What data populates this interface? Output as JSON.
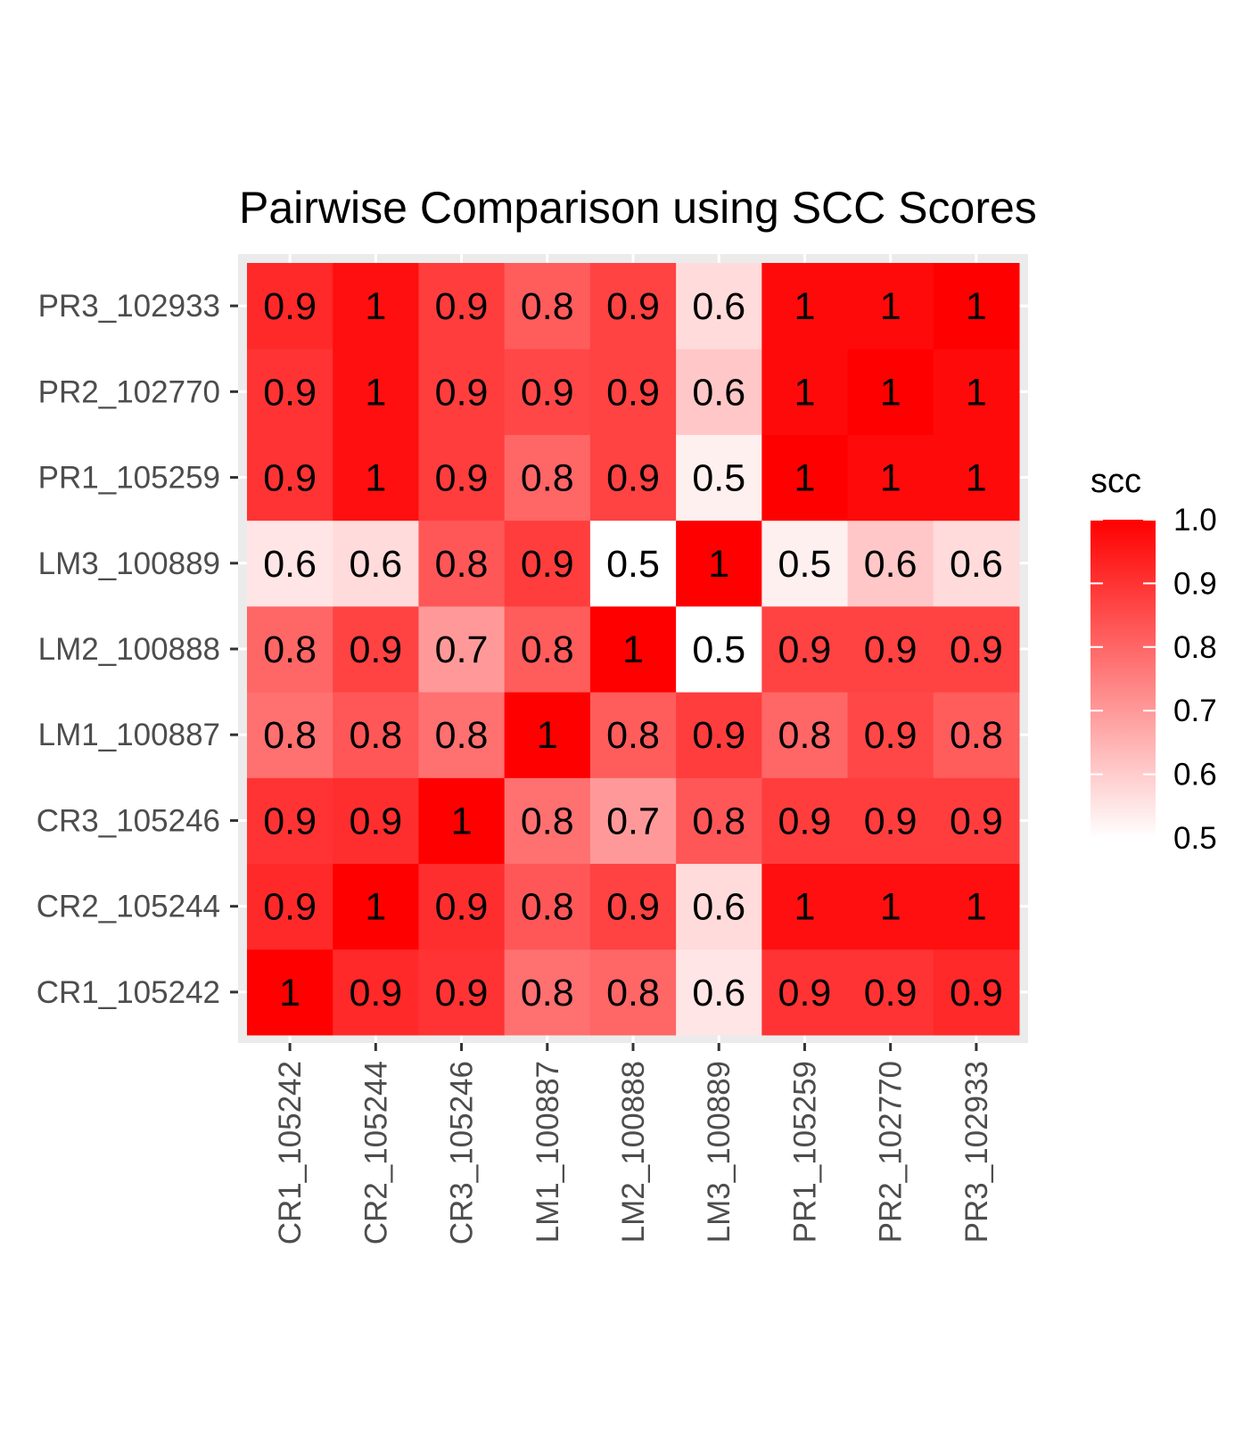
{
  "chart_data": {
    "type": "heatmap",
    "title": "Pairwise Comparison using SCC Scores",
    "x_categories": [
      "CR1_105242",
      "CR2_105244",
      "CR3_105246",
      "LM1_100887",
      "LM2_100888",
      "LM3_100889",
      "PR1_105259",
      "PR2_102770",
      "PR3_102933"
    ],
    "y_categories": [
      "CR1_105242",
      "CR2_105244",
      "CR3_105246",
      "LM1_100887",
      "LM2_100888",
      "LM3_100889",
      "PR1_105259",
      "PR2_102770",
      "PR3_102933"
    ],
    "values": [
      [
        1.0,
        0.92,
        0.9,
        0.78,
        0.8,
        0.55,
        0.9,
        0.9,
        0.92
      ],
      [
        0.92,
        1.0,
        0.91,
        0.83,
        0.87,
        0.57,
        0.97,
        0.97,
        0.97
      ],
      [
        0.9,
        0.91,
        1.0,
        0.78,
        0.7,
        0.83,
        0.88,
        0.88,
        0.88
      ],
      [
        0.78,
        0.83,
        0.78,
        1.0,
        0.82,
        0.88,
        0.8,
        0.86,
        0.82
      ],
      [
        0.8,
        0.87,
        0.7,
        0.82,
        1.0,
        0.5,
        0.87,
        0.87,
        0.87
      ],
      [
        0.55,
        0.57,
        0.83,
        0.88,
        0.5,
        1.0,
        0.53,
        0.61,
        0.57
      ],
      [
        0.9,
        0.97,
        0.88,
        0.8,
        0.87,
        0.53,
        1.0,
        0.98,
        0.98
      ],
      [
        0.9,
        0.97,
        0.88,
        0.86,
        0.87,
        0.61,
        0.98,
        1.0,
        0.98
      ],
      [
        0.92,
        0.97,
        0.88,
        0.82,
        0.87,
        0.57,
        0.98,
        0.98,
        1.0
      ]
    ],
    "cell_labels": [
      [
        "1",
        "0.9",
        "0.9",
        "0.8",
        "0.8",
        "0.6",
        "0.9",
        "0.9",
        "0.9"
      ],
      [
        "0.9",
        "1",
        "0.9",
        "0.8",
        "0.9",
        "0.6",
        "1",
        "1",
        "1"
      ],
      [
        "0.9",
        "0.9",
        "1",
        "0.8",
        "0.7",
        "0.8",
        "0.9",
        "0.9",
        "0.9"
      ],
      [
        "0.8",
        "0.8",
        "0.8",
        "1",
        "0.8",
        "0.9",
        "0.8",
        "0.9",
        "0.8"
      ],
      [
        "0.8",
        "0.9",
        "0.7",
        "0.8",
        "1",
        "0.5",
        "0.9",
        "0.9",
        "0.9"
      ],
      [
        "0.6",
        "0.6",
        "0.8",
        "0.9",
        "0.5",
        "1",
        "0.5",
        "0.6",
        "0.6"
      ],
      [
        "0.9",
        "1",
        "0.9",
        "0.8",
        "0.9",
        "0.5",
        "1",
        "1",
        "1"
      ],
      [
        "0.9",
        "1",
        "0.9",
        "0.9",
        "0.9",
        "0.6",
        "1",
        "1",
        "1"
      ],
      [
        "0.9",
        "1",
        "0.9",
        "0.8",
        "0.9",
        "0.6",
        "1",
        "1",
        "1"
      ]
    ],
    "value_range": [
      0.5,
      1.0
    ],
    "color_low": "#ffffff",
    "color_high": "#ff0000",
    "panel_background": "#ebebeb",
    "grid": true,
    "legend": {
      "title": "scc",
      "ticks": [
        "1.0",
        "0.9",
        "0.8",
        "0.7",
        "0.6",
        "0.5"
      ],
      "tick_values": [
        1.0,
        0.9,
        0.8,
        0.7,
        0.6,
        0.5
      ],
      "placement": "right"
    }
  }
}
